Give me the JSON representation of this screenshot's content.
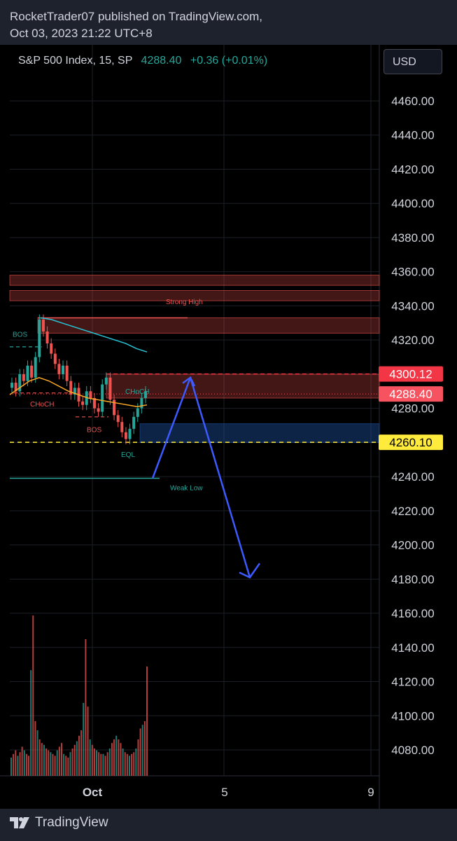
{
  "header": {
    "line1": "RocketTrader07 published on TradingView.com,",
    "line2": "Oct 03, 2023 21:22 UTC+8"
  },
  "legend": {
    "symbol": "S&P 500 Index, 15, SP",
    "price": "4288.40",
    "change": "+0.36 (+0.01%)"
  },
  "currency_button": "USD",
  "footer": {
    "brand": "TradingView",
    "logo_icon": "tradingview-logo-icon"
  },
  "colors": {
    "up": "#26a69a",
    "down": "#ef5350",
    "ema_slow": "#26c6da",
    "ema_fast": "#f9a825",
    "arrow": "#3d5afe"
  },
  "chart_data": {
    "type": "line",
    "title": "S&P 500 Index, 15, SP",
    "ylim": [
      4070,
      4470
    ],
    "y_ticks": [
      "4460.00",
      "4440.00",
      "4420.00",
      "4400.00",
      "4380.00",
      "4360.00",
      "4340.00",
      "4320.00",
      "4300.00",
      "4280.00",
      "4260.00",
      "4240.00",
      "4220.00",
      "4200.00",
      "4180.00",
      "4160.00",
      "4140.00",
      "4120.00",
      "4100.00",
      "4080.00"
    ],
    "x_ticks": [
      "Oct",
      "5",
      "9"
    ],
    "price_labels": [
      {
        "text": "4300.12",
        "value": 4300.12,
        "color": "#f23645"
      },
      {
        "text": "4288.40",
        "value": 4288.4,
        "color": "#f7525f"
      },
      {
        "text": "4260.10",
        "value": 4260.1,
        "color": "#ffeb3b"
      }
    ],
    "zones": [
      {
        "from": 4352,
        "to": 4358,
        "color": "#ef5350"
      },
      {
        "from": 4343,
        "to": 4349,
        "color": "#ef5350"
      },
      {
        "from": 4324,
        "to": 4333,
        "color": "#ef5350"
      },
      {
        "from": 4286,
        "to": 4300,
        "color": "#ef5350"
      },
      {
        "from": 4260,
        "to": 4271,
        "color": "#1e4f9c"
      }
    ],
    "annotations": [
      {
        "text": "Strong High",
        "color": "#ef5350"
      },
      {
        "text": "BOS",
        "color": "#26a69a"
      },
      {
        "text": "CHoCH",
        "color": "#ef5350"
      },
      {
        "text": "BOS",
        "color": "#ef5350"
      },
      {
        "text": "CHoCH",
        "color": "#26a69a"
      },
      {
        "text": "EQL",
        "color": "#26a69a"
      },
      {
        "text": "Weak Low",
        "color": "#26a69a"
      }
    ],
    "series": [
      {
        "values": [
          4295,
          4290,
          4300,
          4296,
          4305,
          4298,
          4310,
          4332,
          4325,
          4318,
          4312,
          4306,
          4300,
          4305,
          4296,
          4288,
          4292,
          4284,
          4282,
          4290,
          4286,
          4280,
          4278,
          4294,
          4298,
          4285,
          4276,
          4272,
          4266,
          4262,
          4268,
          4275,
          4280,
          4286,
          4290
        ]
      }
    ],
    "ema_slow": [
      4333,
      4332,
      4330,
      4328,
      4326,
      4324,
      4322,
      4320,
      4318,
      4315,
      4313
    ],
    "ema_fast": [
      4288,
      4292,
      4296,
      4298,
      4296,
      4293,
      4290,
      4288,
      4286,
      4285,
      4284,
      4283,
      4282,
      4281,
      4282
    ]
  }
}
